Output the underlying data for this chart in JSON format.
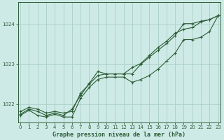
{
  "title": "Graphe pression niveau de la mer (hPa)",
  "background_color": "#ceeae6",
  "grid_color": "#aacfc8",
  "line_color": "#2d5e38",
  "x_ticks": [
    0,
    1,
    2,
    3,
    4,
    5,
    6,
    7,
    8,
    9,
    10,
    11,
    12,
    13,
    14,
    15,
    16,
    17,
    18,
    19,
    20,
    21,
    22,
    23
  ],
  "y_ticks": [
    1022,
    1023,
    1024
  ],
  "ylim": [
    1021.55,
    1024.55
  ],
  "xlim": [
    -0.3,
    23.3
  ],
  "line1": [
    1021.82,
    1021.92,
    1021.88,
    1021.78,
    1021.82,
    1021.78,
    1021.82,
    1022.28,
    1022.5,
    1022.72,
    1022.76,
    1022.76,
    1022.76,
    1022.76,
    1023.0,
    1023.18,
    1023.35,
    1023.52,
    1023.72,
    1024.02,
    1024.02,
    1024.08,
    1024.12,
    1024.22
  ],
  "line2": [
    1021.75,
    1021.88,
    1021.82,
    1021.72,
    1021.78,
    1021.72,
    1021.88,
    1022.22,
    1022.52,
    1022.82,
    1022.76,
    1022.76,
    1022.76,
    1022.92,
    1023.02,
    1023.22,
    1023.42,
    1023.58,
    1023.78,
    1023.88,
    1023.92,
    1024.06,
    1024.12,
    1024.22
  ],
  "line3": [
    1021.72,
    1021.85,
    1021.72,
    1021.68,
    1021.75,
    1021.68,
    1021.68,
    1022.15,
    1022.42,
    1022.62,
    1022.68,
    1022.68,
    1022.68,
    1022.55,
    1022.62,
    1022.72,
    1022.88,
    1023.08,
    1023.28,
    1023.62,
    1023.62,
    1023.68,
    1023.82,
    1024.22
  ]
}
